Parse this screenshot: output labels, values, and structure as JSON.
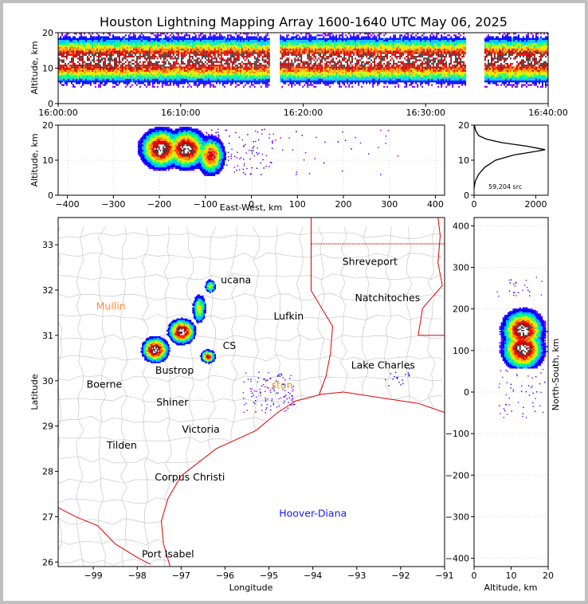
{
  "title": "Houston Lightning Mapping Array 1600-1640 UTC May 06, 2025",
  "colors": {
    "density": [
      "#7f00ff",
      "#0000ff",
      "#00bfff",
      "#00ff80",
      "#bfff00",
      "#ffd700",
      "#ff8000",
      "#ff0000",
      "#c00000",
      "#404040",
      "#ffffff"
    ],
    "state_border": "#e00000",
    "county_border": "#c8c8c8",
    "coast": "#e00000",
    "profile_line": "#000000"
  },
  "chart_data": [
    {
      "id": "time_height",
      "type": "heatmap",
      "ylabel": "Altitude, km",
      "xlabel": "",
      "ylim": [
        0,
        20
      ],
      "yticks": [
        "0",
        "10",
        "20"
      ],
      "xticks": [
        "16:00:00",
        "16:10:00",
        "16:20:00",
        "16:30:00",
        "16:40:00"
      ],
      "xlim_minutes": [
        0,
        40
      ],
      "activity_segments_minutes": [
        [
          0,
          17.2
        ],
        [
          18.1,
          33.2
        ],
        [
          34.8,
          40
        ]
      ],
      "core_altitude_km": [
        9,
        15
      ]
    },
    {
      "id": "ew_height",
      "type": "heatmap",
      "xlabel": "East-West, km",
      "ylabel": "Altitude, km",
      "xlim": [
        -420,
        420
      ],
      "ylim": [
        0,
        20
      ],
      "xticks": [
        "−400",
        "−300",
        "−200",
        "−100",
        "0",
        "100",
        "200",
        "300",
        "400"
      ],
      "yticks": [
        "0",
        "10",
        "20"
      ],
      "cores": [
        {
          "x": -198,
          "alt": 13
        },
        {
          "x": -143,
          "alt": 13
        },
        {
          "x": -90,
          "alt": 11
        }
      ],
      "scatter_x_range": [
        -100,
        320
      ]
    },
    {
      "id": "altitude_histogram",
      "type": "line",
      "annotation": "59,204 src",
      "xlim": [
        0,
        2400
      ],
      "ylim": [
        0,
        20
      ],
      "xticks": [
        "0",
        "2000"
      ],
      "yticks": [
        "0",
        "10",
        "20"
      ],
      "profile": [
        [
          0,
          2
        ],
        [
          40,
          4
        ],
        [
          150,
          6
        ],
        [
          350,
          8
        ],
        [
          700,
          10
        ],
        [
          1300,
          11.5
        ],
        [
          2000,
          12.5
        ],
        [
          2300,
          13
        ],
        [
          1700,
          14
        ],
        [
          900,
          15
        ],
        [
          400,
          16
        ],
        [
          150,
          17
        ],
        [
          50,
          18.5
        ],
        [
          10,
          20
        ]
      ]
    },
    {
      "id": "plan_view",
      "type": "heatmap",
      "xlabel": "Longitude",
      "ylabel": "Latitude",
      "xlim": [
        -99.8,
        -91.0
      ],
      "ylim": [
        25.9,
        33.6
      ],
      "xticks": [
        "−99",
        "−98",
        "−97",
        "−96",
        "−95",
        "−94",
        "−93",
        "−92",
        "−91"
      ],
      "yticks": [
        "26",
        "27",
        "28",
        "29",
        "30",
        "31",
        "32",
        "33"
      ],
      "cores": [
        {
          "lon": -97.6,
          "lat": 30.7
        },
        {
          "lon": -97.0,
          "lat": 31.1
        },
        {
          "lon": -96.4,
          "lat": 30.55
        }
      ],
      "cities": [
        {
          "name": "Shreveport",
          "lon": -92.7,
          "lat": 32.55,
          "color": "#000000"
        },
        {
          "name": "Natchitoches",
          "lon": -92.3,
          "lat": 31.75,
          "color": "#000000"
        },
        {
          "name": "Lufkin",
          "lon": -94.55,
          "lat": 31.35,
          "color": "#000000"
        },
        {
          "name": "Lake Charles",
          "lon": -92.4,
          "lat": 30.27,
          "color": "#000000"
        },
        {
          "name": "Mullin",
          "lon": -98.6,
          "lat": 31.57,
          "color": "#ff8c3c"
        },
        {
          "name": "Boerne",
          "lon": -98.75,
          "lat": 29.85,
          "color": "#000000"
        },
        {
          "name": "Bustrop",
          "lon": -97.15,
          "lat": 30.15,
          "color": "#000000"
        },
        {
          "name": "Shiner",
          "lon": -97.2,
          "lat": 29.45,
          "color": "#000000"
        },
        {
          "name": "Victoria",
          "lon": -96.55,
          "lat": 28.85,
          "color": "#000000"
        },
        {
          "name": "Tilden",
          "lon": -98.35,
          "lat": 28.5,
          "color": "#000000"
        },
        {
          "name": "Corpus Christi",
          "lon": -96.8,
          "lat": 27.8,
          "color": "#000000"
        },
        {
          "name": "Port Isabel",
          "lon": -97.3,
          "lat": 26.1,
          "color": "#000000"
        },
        {
          "name": "Hoover-Diana",
          "lon": -94.0,
          "lat": 27.0,
          "color": "#1a1aff"
        },
        {
          "name": "ston",
          "lon": -94.7,
          "lat": 29.83,
          "color": "#e0a000"
        },
        {
          "name": "ucana",
          "lon": -95.75,
          "lat": 32.15,
          "color": "#000000"
        },
        {
          "name": "CS",
          "lon": -95.9,
          "lat": 30.7,
          "color": "#000000"
        }
      ]
    },
    {
      "id": "ns_height",
      "type": "heatmap",
      "xlabel": "Altitude, km",
      "ylabel": "North-South, km",
      "xlim": [
        0,
        20
      ],
      "ylim": [
        -420,
        420
      ],
      "xticks": [
        "0",
        "10",
        "20"
      ],
      "yticks": [
        "−400",
        "−300",
        "−200",
        "−100",
        "0",
        "100",
        "200",
        "300",
        "400"
      ],
      "cores": [
        {
          "y": 105,
          "alt": 13
        },
        {
          "y": 150,
          "alt": 13
        }
      ]
    }
  ]
}
